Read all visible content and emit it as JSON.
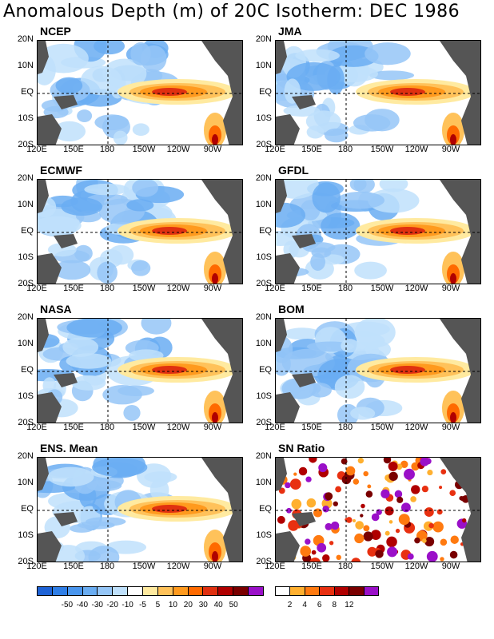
{
  "title": "Anomalous Depth (m) of 20C Isotherm: DEC 1986",
  "y_ticks": [
    "20N",
    "10N",
    "EQ",
    "10S",
    "20S"
  ],
  "x_ticks": [
    "120E",
    "150E",
    "180",
    "150W",
    "120W",
    "90W"
  ],
  "panels": [
    {
      "name": "NCEP"
    },
    {
      "name": "JMA"
    },
    {
      "name": "ECMWF"
    },
    {
      "name": "GFDL"
    },
    {
      "name": "NASA"
    },
    {
      "name": "BOM"
    },
    {
      "name": "ENS. Mean"
    },
    {
      "name": "SN Ratio"
    }
  ],
  "colorbar_anom": {
    "labels": [
      "-50",
      "-40",
      "-30",
      "-20",
      "-10",
      "-5",
      "5",
      "10",
      "20",
      "30",
      "40",
      "50"
    ],
    "colors": [
      "#1e63d6",
      "#2f7ee6",
      "#4a96ee",
      "#6aadf2",
      "#95c6f7",
      "#bfe0fb",
      "#ffffff",
      "#ffeaa0",
      "#ffc25a",
      "#ff9a1e",
      "#ff6a00",
      "#e03010",
      "#b00000",
      "#7a0000",
      "#9a10c8"
    ]
  },
  "colorbar_sn": {
    "labels": [
      "2",
      "4",
      "6",
      "8",
      "12"
    ],
    "colors": [
      "#ffffff",
      "#ffb030",
      "#ff7a10",
      "#e83010",
      "#b00000",
      "#7a0000",
      "#9a10c8"
    ]
  },
  "chart_data": [
    {
      "type": "heatmap",
      "panel": "NCEP",
      "xlim": [
        "120E",
        "70W"
      ],
      "ylim": [
        "20S",
        "20N"
      ]
    },
    {
      "type": "heatmap",
      "panel": "JMA",
      "xlim": [
        "120E",
        "70W"
      ],
      "ylim": [
        "20S",
        "20N"
      ]
    },
    {
      "type": "heatmap",
      "panel": "ECMWF",
      "xlim": [
        "120E",
        "70W"
      ],
      "ylim": [
        "20S",
        "20N"
      ]
    },
    {
      "type": "heatmap",
      "panel": "GFDL",
      "xlim": [
        "120E",
        "70W"
      ],
      "ylim": [
        "20S",
        "20N"
      ]
    },
    {
      "type": "heatmap",
      "panel": "NASA",
      "xlim": [
        "120E",
        "70W"
      ],
      "ylim": [
        "20S",
        "20N"
      ]
    },
    {
      "type": "heatmap",
      "panel": "BOM",
      "xlim": [
        "120E",
        "70W"
      ],
      "ylim": [
        "20S",
        "20N"
      ]
    },
    {
      "type": "heatmap",
      "panel": "ENS. Mean",
      "xlim": [
        "120E",
        "70W"
      ],
      "ylim": [
        "20S",
        "20N"
      ]
    },
    {
      "type": "heatmap",
      "panel": "SN Ratio",
      "xlim": [
        "120E",
        "70W"
      ],
      "ylim": [
        "20S",
        "20N"
      ]
    }
  ]
}
